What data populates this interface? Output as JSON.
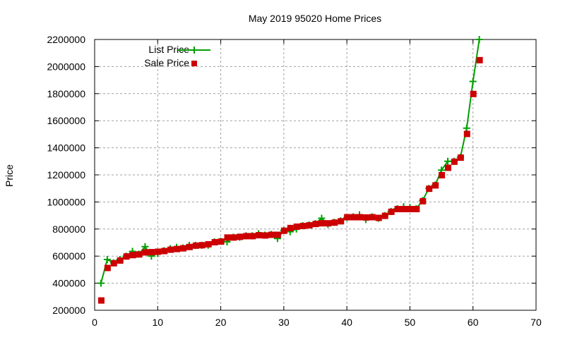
{
  "chart_data": {
    "type": "line",
    "title": "May 2019 95020 Home Prices",
    "xlabel": "",
    "ylabel": "Price",
    "xlim": [
      0,
      70
    ],
    "ylim": [
      200000,
      2200000
    ],
    "x_ticks": [
      0,
      10,
      20,
      30,
      40,
      50,
      60,
      70
    ],
    "y_ticks": [
      200000,
      400000,
      600000,
      800000,
      1000000,
      1200000,
      1400000,
      1600000,
      1800000,
      2000000,
      2200000
    ],
    "grid": true,
    "legend_position": "top-left",
    "x": [
      1,
      2,
      3,
      4,
      5,
      6,
      7,
      8,
      9,
      10,
      11,
      12,
      13,
      14,
      15,
      16,
      17,
      18,
      19,
      20,
      21,
      22,
      23,
      24,
      25,
      26,
      27,
      28,
      29,
      30,
      31,
      32,
      33,
      34,
      35,
      36,
      37,
      38,
      39,
      40,
      41,
      42,
      43,
      44,
      45,
      46,
      47,
      48,
      49,
      50,
      51,
      52,
      53,
      54,
      55,
      56,
      57,
      58,
      59,
      60,
      61
    ],
    "series": [
      {
        "name": "List Price",
        "style": "linespoints",
        "marker": "plus",
        "color": "#00a000",
        "values": [
          400000,
          575000,
          550000,
          575000,
          600000,
          635000,
          615000,
          670000,
          600000,
          620000,
          640000,
          655000,
          665000,
          660000,
          680000,
          680000,
          680000,
          680000,
          705000,
          710000,
          705000,
          740000,
          740000,
          750000,
          750000,
          765000,
          755000,
          760000,
          730000,
          790000,
          780000,
          800000,
          825000,
          830000,
          840000,
          880000,
          835000,
          850000,
          860000,
          885000,
          890000,
          905000,
          870000,
          890000,
          880000,
          900000,
          930000,
          950000,
          965000,
          960000,
          950000,
          1010000,
          1100000,
          1125000,
          1235000,
          1300000,
          1300000,
          1330000,
          1545000,
          1890000,
          2200000
        ]
      },
      {
        "name": "Sale Price",
        "style": "points",
        "marker": "square",
        "color": "#cc0000",
        "values": [
          275000,
          515000,
          550000,
          570000,
          600000,
          610000,
          615000,
          630000,
          632000,
          635000,
          640000,
          650000,
          655000,
          660000,
          670000,
          680000,
          683000,
          690000,
          705000,
          710000,
          740000,
          740000,
          745000,
          750000,
          750000,
          757000,
          755000,
          760000,
          760000,
          790000,
          810000,
          820000,
          825000,
          830000,
          840000,
          845000,
          845000,
          850000,
          860000,
          890000,
          890000,
          890000,
          888000,
          890000,
          885000,
          900000,
          930000,
          950000,
          950000,
          950000,
          950000,
          1008000,
          1100000,
          1125000,
          1200000,
          1255000,
          1300000,
          1330000,
          1505000,
          1800000,
          2050000
        ]
      }
    ]
  },
  "legend": {
    "items": [
      {
        "label": "List Price"
      },
      {
        "label": "Sale Price"
      }
    ]
  }
}
